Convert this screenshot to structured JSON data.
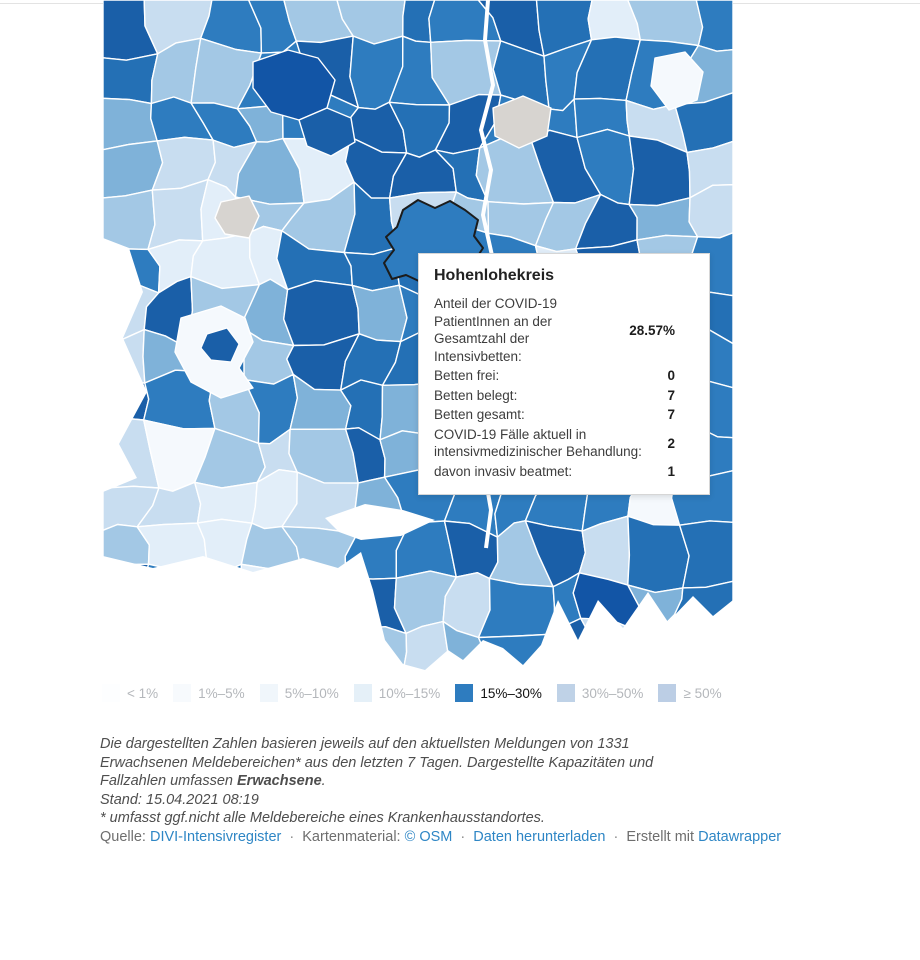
{
  "tooltip": {
    "title": "Hohenlohekreis",
    "rows": [
      {
        "label": "Anteil der COVID-19 PatientInnen an der Gesamtzahl der Intensivbetten:",
        "value": "28.57%"
      },
      {
        "label": "Betten frei:",
        "value": "0"
      },
      {
        "label": "Betten belegt:",
        "value": "7"
      },
      {
        "label": "Betten gesamt:",
        "value": "7"
      },
      {
        "label": "COVID-19 Fälle aktuell in intensivmedizinischer Behandlung:",
        "value": "2"
      },
      {
        "label": "davon invasiv beatmet:",
        "value": "1"
      }
    ]
  },
  "legend": {
    "items": [
      {
        "label": "< 1%",
        "color": "#f7fbff",
        "active": false
      },
      {
        "label": "1%–5%",
        "color": "#e2eef9",
        "active": false
      },
      {
        "label": "5%–10%",
        "color": "#c8ddf0",
        "active": false
      },
      {
        "label": "10%–15%",
        "color": "#a3c8e5",
        "active": false
      },
      {
        "label": "15%–30%",
        "color": "#2e7cbf",
        "active": true
      },
      {
        "label": "30%–50%",
        "color": "#1a5fa8",
        "active": false
      },
      {
        "label": "≥ 50%",
        "color": "#0f4fa0",
        "active": false
      }
    ]
  },
  "notes": {
    "line1": "Die dargestellten Zahlen basieren jeweils auf den aktuellsten Meldungen von 1331",
    "line2": "Erwachsenen Meldebereichen* aus den letzten 7 Tagen. Dargestellte Kapazitäten und",
    "line3_before": "Fallzahlen umfassen ",
    "line3_bold": "Erwachsene",
    "line3_after": ".",
    "stand": "Stand: 15.04.2021 08:19",
    "asterisk": "* umfasst ggf.nicht alle Meldebereiche eines Krankenhausstandortes."
  },
  "attribution": {
    "source_label": "Quelle:",
    "source_link": "DIVI-Intensivregister",
    "separator": "·",
    "map_label": "Kartenmaterial:",
    "map_link": "© OSM",
    "download_link": "Daten herunterladen",
    "created_label": "Erstellt mit",
    "created_link": "Datawrapper"
  },
  "map": {
    "selected_district": "Hohenlohekreis",
    "selected_value_pct": 28.57,
    "border_color": "#ffffff",
    "selected_outline_color": "#1c1c1c",
    "no_data_color": "#d7d4d0",
    "palette": {
      "white": "#f5f9fd",
      "pale1": "#e2eef9",
      "pale2": "#c8ddf0",
      "light": "#a3c8e5",
      "lightmid": "#7fb2d9",
      "medium": "#2e7cbf",
      "mediumdark": "#2470b5",
      "dark": "#1a5fa8",
      "navy": "#1255a6",
      "nodata": "#d7d4d0"
    }
  }
}
